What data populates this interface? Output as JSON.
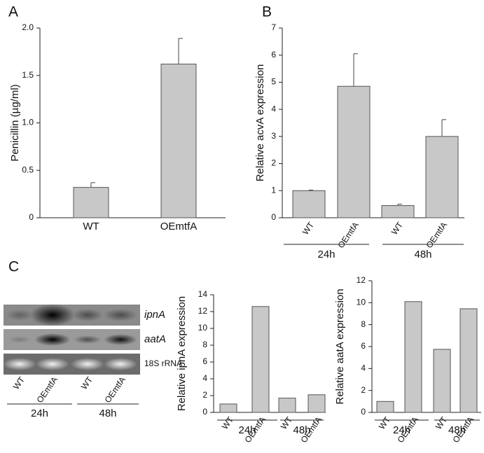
{
  "chart_data": [
    {
      "type": "bar",
      "panel": "A",
      "ylabel": "Penicillin (µg/ml)",
      "categories": [
        "WT",
        "OEmtfA"
      ],
      "values": [
        0.32,
        1.62
      ],
      "errors": [
        0.05,
        0.27
      ],
      "color": "#c8c8c8",
      "ylim": [
        0,
        2
      ],
      "yticks": [
        0,
        0.5,
        {
          "value": 1,
          "label": "1.0"
        },
        1.5,
        {
          "value": 2,
          "label": "2.0"
        }
      ]
    },
    {
      "type": "bar",
      "panel": "B",
      "ylabel": "Relative acvA expression",
      "categories": [
        "WT",
        "OEmtfA",
        "WT",
        "OEmtfA"
      ],
      "groups": [
        "24h",
        "48h"
      ],
      "values": [
        1.0,
        4.85,
        0.45,
        3.0
      ],
      "errors": [
        0.02,
        1.2,
        0.05,
        0.62
      ],
      "color": "#c8c8c8",
      "ylim": [
        0,
        7
      ],
      "yticks": [
        0,
        1,
        2,
        3,
        4,
        5,
        6,
        7
      ]
    },
    {
      "type": "bar",
      "ylabel": "Relative ipnA expression",
      "categories": [
        "WT",
        "OEmtfA",
        "WT",
        "OEmtfA"
      ],
      "groups": [
        "24h",
        "48h"
      ],
      "values": [
        1.0,
        12.6,
        1.7,
        2.1
      ],
      "color": "#c8c8c8",
      "ylim": [
        0,
        14
      ],
      "yticks": [
        0,
        2,
        4,
        6,
        8,
        10,
        12,
        14
      ]
    },
    {
      "type": "bar",
      "ylabel": "Relative aatA expression",
      "categories": [
        "WT",
        "OEmtfA",
        "WT",
        "OEmtfA"
      ],
      "groups": [
        "24h",
        "48h"
      ],
      "values": [
        1.0,
        10.1,
        5.75,
        9.45
      ],
      "color": "#c8c8c8",
      "ylim": [
        0,
        12
      ],
      "yticks": [
        0,
        2,
        4,
        6,
        8,
        10,
        12
      ]
    }
  ],
  "gel": {
    "panel": "C",
    "rows": [
      "ipnA",
      "aatA",
      "18S rRNA"
    ],
    "categories": [
      "WT",
      "OEmtfA",
      "WT",
      "OEmtfA"
    ],
    "groups": [
      "24h",
      "48h"
    ]
  }
}
